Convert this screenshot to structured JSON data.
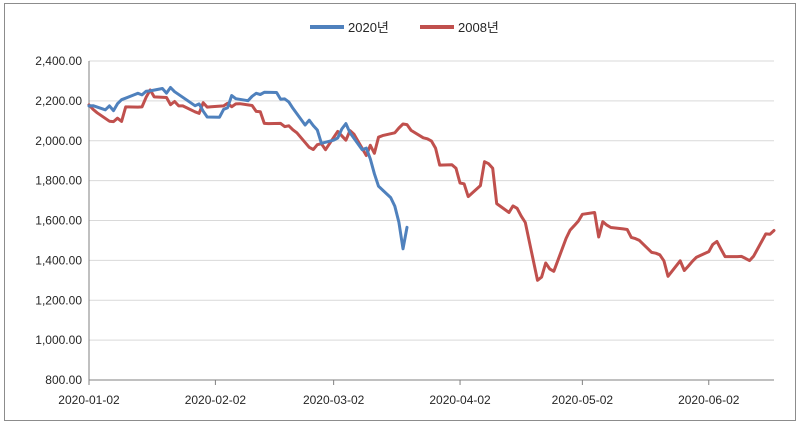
{
  "chart_data": {
    "type": "line",
    "title": "",
    "xlabel": "",
    "ylabel": "",
    "ylim": [
      800,
      2400
    ],
    "y_ticks": [
      800,
      1000,
      1200,
      1400,
      1600,
      1800,
      2000,
      2200,
      2400
    ],
    "y_tick_labels": [
      "800.00",
      "1,000.00",
      "1,200.00",
      "1,400.00",
      "1,600.00",
      "1,800.00",
      "2,000.00",
      "2,200.00",
      "2,400.00"
    ],
    "xlim": [
      "2020-01-02",
      "2020-06-18"
    ],
    "x_ticks": [
      "2020-01-02",
      "2020-02-02",
      "2020-03-02",
      "2020-04-02",
      "2020-05-02",
      "2020-06-02"
    ],
    "grid": {
      "horizontal": true,
      "vertical": false
    },
    "legend": "top-center",
    "series": [
      {
        "name": "2020년",
        "color": "#4f81bd",
        "x": [
          "2020-01-02",
          "2020-01-03",
          "2020-01-06",
          "2020-01-07",
          "2020-01-08",
          "2020-01-09",
          "2020-01-10",
          "2020-01-13",
          "2020-01-14",
          "2020-01-15",
          "2020-01-16",
          "2020-01-17",
          "2020-01-20",
          "2020-01-21",
          "2020-01-22",
          "2020-01-23",
          "2020-01-28",
          "2020-01-29",
          "2020-01-30",
          "2020-01-31",
          "2020-02-03",
          "2020-02-04",
          "2020-02-05",
          "2020-02-06",
          "2020-02-07",
          "2020-02-10",
          "2020-02-11",
          "2020-02-12",
          "2020-02-13",
          "2020-02-14",
          "2020-02-17",
          "2020-02-18",
          "2020-02-19",
          "2020-02-20",
          "2020-02-21",
          "2020-02-24",
          "2020-02-25",
          "2020-02-26",
          "2020-02-27",
          "2020-02-28",
          "2020-03-02",
          "2020-03-03",
          "2020-03-04",
          "2020-03-05",
          "2020-03-06",
          "2020-03-09",
          "2020-03-10",
          "2020-03-11",
          "2020-03-12",
          "2020-03-13",
          "2020-03-16",
          "2020-03-17",
          "2020-03-18",
          "2020-03-19",
          "2020-03-20"
        ],
        "values": [
          2175,
          2176,
          2155,
          2175,
          2151,
          2186,
          2206,
          2230,
          2238,
          2230,
          2248,
          2250,
          2262,
          2239,
          2267,
          2246,
          2176,
          2185,
          2148,
          2119,
          2118,
          2157,
          2166,
          2227,
          2211,
          2201,
          2223,
          2238,
          2232,
          2243,
          2242,
          2208,
          2210,
          2195,
          2163,
          2079,
          2103,
          2076,
          2054,
          1987,
          2003,
          2014,
          2059,
          2086,
          2040,
          1955,
          1963,
          1909,
          1834,
          1772,
          1715,
          1672,
          1591,
          1458,
          1566
        ]
      },
      {
        "name": "2008년",
        "color": "#c0504d",
        "x": [
          "2020-01-02",
          "2020-01-03",
          "2020-01-04",
          "2020-01-07",
          "2020-01-08",
          "2020-01-09",
          "2020-01-10",
          "2020-01-11",
          "2020-01-14",
          "2020-01-15",
          "2020-01-16",
          "2020-01-17",
          "2020-01-18",
          "2020-01-21",
          "2020-01-22",
          "2020-01-23",
          "2020-01-24",
          "2020-01-25",
          "2020-01-28",
          "2020-01-29",
          "2020-01-30",
          "2020-01-31",
          "2020-02-01",
          "2020-02-04",
          "2020-02-05",
          "2020-02-06",
          "2020-02-07",
          "2020-02-08",
          "2020-02-11",
          "2020-02-12",
          "2020-02-13",
          "2020-02-14",
          "2020-02-15",
          "2020-02-18",
          "2020-02-19",
          "2020-02-20",
          "2020-02-21",
          "2020-02-22",
          "2020-02-25",
          "2020-02-26",
          "2020-02-27",
          "2020-02-28",
          "2020-02-29",
          "2020-03-03",
          "2020-03-04",
          "2020-03-05",
          "2020-03-06",
          "2020-03-07",
          "2020-03-10",
          "2020-03-11",
          "2020-03-12",
          "2020-03-13",
          "2020-03-14",
          "2020-03-17",
          "2020-03-18",
          "2020-03-19",
          "2020-03-20",
          "2020-03-21",
          "2020-03-24",
          "2020-03-25",
          "2020-03-26",
          "2020-03-27",
          "2020-03-28",
          "2020-03-31",
          "2020-04-01",
          "2020-04-02",
          "2020-04-03",
          "2020-04-04",
          "2020-04-07",
          "2020-04-08",
          "2020-04-09",
          "2020-04-10",
          "2020-04-11",
          "2020-04-14",
          "2020-04-15",
          "2020-04-16",
          "2020-04-17",
          "2020-04-18",
          "2020-04-21",
          "2020-04-22",
          "2020-04-23",
          "2020-04-24",
          "2020-04-25",
          "2020-04-28",
          "2020-04-29",
          "2020-04-30",
          "2020-05-01",
          "2020-05-02",
          "2020-05-05",
          "2020-05-06",
          "2020-05-07",
          "2020-05-08",
          "2020-05-09",
          "2020-05-12",
          "2020-05-13",
          "2020-05-14",
          "2020-05-15",
          "2020-05-16",
          "2020-05-19",
          "2020-05-20",
          "2020-05-21",
          "2020-05-22",
          "2020-05-23",
          "2020-05-26",
          "2020-05-27",
          "2020-05-28",
          "2020-05-29",
          "2020-05-30",
          "2020-06-02",
          "2020-06-03",
          "2020-06-04",
          "2020-06-05",
          "2020-06-06",
          "2020-06-09",
          "2020-06-10",
          "2020-06-11",
          "2020-06-12",
          "2020-06-13",
          "2020-06-16",
          "2020-06-17",
          "2020-06-18"
        ],
        "values": [
          2180,
          2157,
          2140,
          2098,
          2096,
          2113,
          2097,
          2170,
          2169,
          2170,
          2218,
          2255,
          2220,
          2217,
          2181,
          2197,
          2175,
          2175,
          2145,
          2137,
          2191,
          2169,
          2171,
          2175,
          2188,
          2171,
          2185,
          2186,
          2177,
          2147,
          2145,
          2087,
          2086,
          2087,
          2071,
          2075,
          2055,
          2040,
          1967,
          1956,
          1980,
          1985,
          1955,
          2047,
          2025,
          2003,
          2051,
          2033,
          1926,
          1977,
          1937,
          2018,
          2026,
          2040,
          2064,
          2084,
          2081,
          2052,
          2015,
          2010,
          1998,
          1962,
          1878,
          1880,
          1862,
          1788,
          1784,
          1720,
          1775,
          1895,
          1885,
          1862,
          1685,
          1640,
          1673,
          1661,
          1622,
          1590,
          1300,
          1316,
          1387,
          1357,
          1345,
          1510,
          1552,
          1574,
          1597,
          1631,
          1640,
          1517,
          1594,
          1577,
          1565,
          1558,
          1555,
          1515,
          1509,
          1500,
          1440,
          1436,
          1428,
          1398,
          1320,
          1398,
          1349,
          1372,
          1396,
          1416,
          1444,
          1480,
          1495,
          1456,
          1419,
          1419,
          1420,
          1410,
          1399,
          1421,
          1533,
          1531,
          1550
        ]
      }
    ]
  }
}
